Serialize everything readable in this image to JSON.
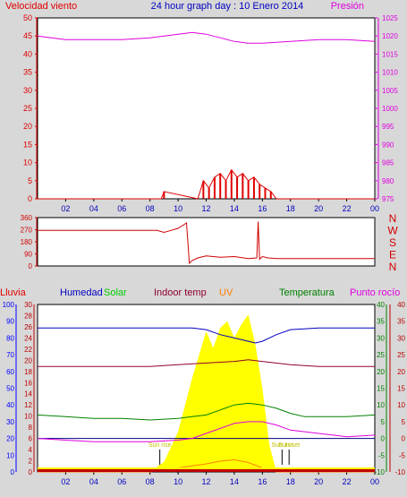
{
  "title": "24 hour graph day : 10 Enero 2014",
  "colors": {
    "background": "#d8d8d8",
    "plot_bg": "#ffffff",
    "wind": "#e00000",
    "wind_dir": "#d00000",
    "pressure": "#e000e0",
    "humidity": "#0000c0",
    "solar": "#ffff00",
    "solar_label": "#00c000",
    "indoor": "#900030",
    "uv": "#ff8000",
    "temperature": "#008000",
    "dewpoint": "#e000e0",
    "rain": "#c00000",
    "hum_axis": "#0000ff"
  },
  "chart_data": [
    {
      "type": "line",
      "panel": "wind-pressure",
      "title": "24 hour graph day : 10 Enero 2014",
      "series": [
        {
          "name": "Velocidad viento",
          "x": [
            0,
            8.8,
            9.0,
            11.4,
            11.8,
            12.2,
            12.6,
            13.0,
            13.4,
            13.8,
            14.2,
            14.6,
            15.0,
            15.4,
            15.8,
            16.2,
            16.6,
            17.0,
            24
          ],
          "values": [
            0,
            0,
            2,
            0,
            5,
            3,
            6,
            7,
            5,
            8,
            6,
            7,
            5,
            6,
            4,
            3,
            2,
            0,
            0
          ]
        },
        {
          "name": "Presión",
          "x": [
            0,
            2,
            4,
            6,
            8,
            10,
            11,
            12,
            13,
            14,
            15,
            16,
            18,
            20,
            22,
            24
          ],
          "values": [
            1020,
            1019,
            1019,
            1019,
            1019.5,
            1020.5,
            1021,
            1020.5,
            1019.5,
            1018.5,
            1018,
            1018,
            1018.5,
            1019,
            1019,
            1018.5
          ]
        }
      ],
      "left_axis": {
        "label": "Velocidad viento",
        "ticks": [
          0,
          5,
          10,
          15,
          20,
          25,
          30,
          35,
          40,
          45,
          50
        ],
        "range": [
          0,
          50
        ]
      },
      "right_axis": {
        "label": "Presión",
        "ticks": [
          975,
          980,
          985,
          990,
          995,
          1000,
          1005,
          1010,
          1015,
          1020,
          1025
        ],
        "range": [
          975,
          1025
        ]
      },
      "x_ticks": [
        "02",
        "04",
        "06",
        "08",
        "10",
        "12",
        "14",
        "16",
        "18",
        "20",
        "22",
        "00"
      ]
    },
    {
      "type": "line",
      "panel": "wind-direction",
      "series": [
        {
          "name": "wind direction",
          "x": [
            0,
            8.5,
            9.0,
            9.5,
            10.0,
            10.6,
            10.8,
            11.0,
            11.4,
            12.0,
            13.0,
            14.0,
            15.0,
            15.6,
            15.7,
            15.8,
            16.0,
            16.4,
            17.0,
            24
          ],
          "values": [
            265,
            265,
            250,
            265,
            280,
            320,
            20,
            40,
            60,
            75,
            65,
            70,
            55,
            60,
            330,
            50,
            70,
            60,
            55,
            55
          ]
        }
      ],
      "left_axis": {
        "ticks": [
          0,
          90,
          180,
          270,
          360
        ],
        "range": [
          0,
          360
        ]
      },
      "compass": [
        "N",
        "W",
        "S",
        "E",
        "N"
      ]
    },
    {
      "type": "line",
      "panel": "humidity-temperature",
      "legend": [
        "Lluvia",
        "Humedad",
        "Solar",
        "Indoor temp",
        "UV",
        "Temperatura",
        "Punto rocío"
      ],
      "series": [
        {
          "name": "Humedad",
          "x": [
            0,
            2,
            2.5,
            3,
            3.5,
            4,
            5,
            6,
            8,
            10,
            11,
            12,
            13,
            14,
            15,
            15.5,
            16,
            17,
            18,
            20,
            22,
            24
          ],
          "values": [
            86,
            86,
            86,
            86,
            86,
            86,
            86,
            86,
            86,
            86,
            86,
            85,
            82,
            80,
            78,
            77,
            78,
            82,
            85,
            86,
            86,
            86
          ]
        },
        {
          "name": "Solar",
          "x": [
            8,
            9,
            10,
            11,
            12,
            12.5,
            13,
            13.5,
            14,
            14.5,
            15,
            15.5,
            16,
            16.5,
            17
          ],
          "values": [
            0,
            30,
            120,
            280,
            420,
            370,
            430,
            450,
            400,
            440,
            470,
            380,
            250,
            80,
            0
          ]
        },
        {
          "name": "Indoor temp",
          "x": [
            0,
            4,
            8,
            10,
            12,
            14,
            15,
            16,
            18,
            20,
            22,
            24
          ],
          "values": [
            21.5,
            21.5,
            21.5,
            22,
            22.5,
            23,
            23.5,
            23,
            22,
            21.5,
            21.5,
            21.5
          ]
        },
        {
          "name": "UV",
          "x": [
            0,
            8,
            10,
            12,
            13,
            14,
            15,
            16,
            17,
            24
          ],
          "values": [
            0,
            0,
            0.3,
            0.6,
            0.8,
            0.9,
            0.7,
            0.3,
            0,
            0
          ]
        },
        {
          "name": "Temperatura",
          "x": [
            0,
            2,
            4,
            6,
            8,
            10,
            11,
            12,
            13,
            14,
            15,
            16,
            17,
            18,
            19,
            20,
            22,
            24
          ],
          "values": [
            7,
            6.5,
            6,
            6,
            5.5,
            6,
            6.5,
            7,
            8.5,
            10,
            10.5,
            10,
            9,
            7.5,
            6.5,
            6.5,
            6.5,
            7
          ]
        },
        {
          "name": "Punto rocío",
          "x": [
            0,
            2,
            4,
            6,
            8,
            10,
            11,
            12,
            13,
            14,
            15,
            16,
            17,
            18,
            20,
            22,
            24
          ],
          "values": [
            0,
            -0.5,
            -1,
            -1,
            -1,
            -0.5,
            0,
            1.5,
            3,
            4.5,
            5,
            5,
            4,
            2.5,
            1.5,
            0.5,
            1
          ]
        },
        {
          "name": "Lluvia",
          "x": [
            0,
            24
          ],
          "values": [
            0,
            0
          ]
        }
      ],
      "axis_rain": {
        "ticks": [
          0,
          2,
          4,
          6,
          8,
          10,
          12,
          14,
          16,
          18,
          20,
          22,
          24,
          26,
          28,
          30
        ],
        "range": [
          0,
          30
        ]
      },
      "axis_humidity": {
        "ticks": [
          0,
          10,
          20,
          30,
          40,
          50,
          60,
          70,
          80,
          90,
          100
        ],
        "range": [
          0,
          100
        ]
      },
      "axis_temp_green": {
        "ticks": [
          -10,
          -5,
          0,
          5,
          10,
          15,
          20,
          25,
          30,
          35,
          40
        ],
        "range": [
          -10,
          40
        ]
      },
      "axis_temp_red": {
        "ticks": [
          -10,
          -5,
          0,
          5,
          10,
          15,
          20,
          25,
          30,
          35,
          40
        ],
        "range": [
          -10,
          40
        ]
      },
      "annotations": [
        {
          "text": "Sun rise",
          "x": 8.7
        },
        {
          "text": "Sun set",
          "x": 17.9
        },
        {
          "text": "Sun 1st",
          "x": 17.4
        }
      ],
      "x_ticks": [
        "02",
        "04",
        "06",
        "08",
        "10",
        "12",
        "14",
        "16",
        "18",
        "20",
        "22",
        "00"
      ]
    }
  ]
}
